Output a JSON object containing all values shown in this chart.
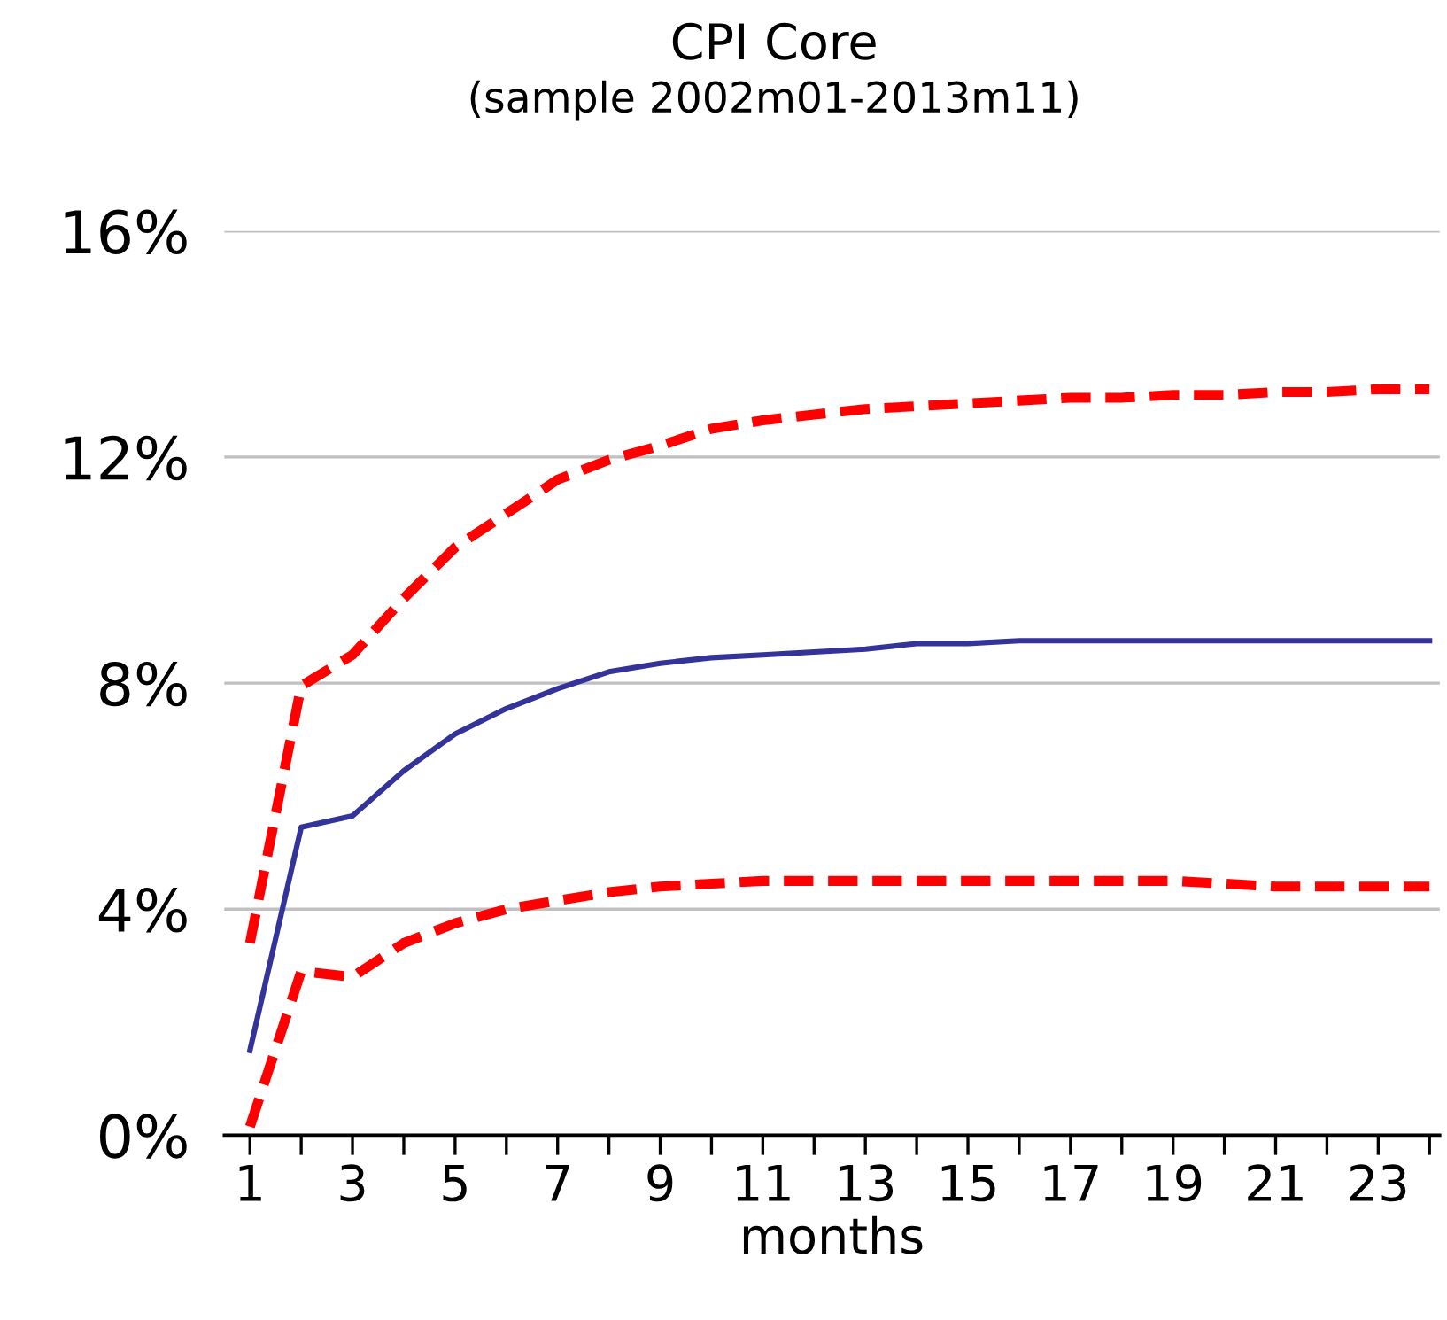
{
  "chart_data": {
    "type": "line",
    "title": "CPI Core",
    "subtitle": "(sample 2002m01-2013m11)",
    "xlabel": "months",
    "x": [
      1,
      2,
      3,
      4,
      5,
      6,
      7,
      8,
      9,
      10,
      11,
      12,
      13,
      14,
      15,
      16,
      17,
      18,
      19,
      20,
      21,
      22,
      23,
      24
    ],
    "series": [
      {
        "color": "#ff0000",
        "line_style": "dashed",
        "values": [
          3.4,
          7.95,
          8.5,
          9.5,
          10.4,
          11.0,
          11.6,
          11.95,
          12.2,
          12.5,
          12.65,
          12.75,
          12.85,
          12.9,
          12.95,
          13.0,
          13.05,
          13.05,
          13.1,
          13.1,
          13.15,
          13.15,
          13.2,
          13.2
        ]
      },
      {
        "color": "#333399",
        "line_style": "solid",
        "values": [
          1.5,
          5.45,
          5.65,
          6.45,
          7.1,
          7.55,
          7.9,
          8.2,
          8.35,
          8.45,
          8.5,
          8.55,
          8.6,
          8.7,
          8.7,
          8.75,
          8.75,
          8.75,
          8.75,
          8.75,
          8.75,
          8.75,
          8.75,
          8.75
        ]
      },
      {
        "color": "#ff0000",
        "line_style": "dashed",
        "values": [
          0.15,
          2.9,
          2.8,
          3.4,
          3.75,
          4.0,
          4.15,
          4.3,
          4.4,
          4.45,
          4.5,
          4.5,
          4.5,
          4.5,
          4.5,
          4.5,
          4.5,
          4.5,
          4.5,
          4.45,
          4.4,
          4.4,
          4.4,
          4.4
        ]
      }
    ],
    "xlim": [
      0.5,
      24.2
    ],
    "ylim": [
      0,
      16
    ],
    "xticks": [
      1,
      {
        "value": 2,
        "label": null
      },
      3,
      {
        "value": 4,
        "label": null
      },
      5,
      {
        "value": 6,
        "label": null
      },
      7,
      {
        "value": 8,
        "label": null
      },
      9,
      {
        "value": 10,
        "label": null
      },
      11,
      {
        "value": 12,
        "label": null
      },
      13,
      {
        "value": 14,
        "label": null
      },
      15,
      {
        "value": 16,
        "label": null
      },
      17,
      {
        "value": 18,
        "label": null
      },
      19,
      {
        "value": 20,
        "label": null
      },
      21,
      {
        "value": 22,
        "label": null
      },
      23,
      {
        "value": 24,
        "label": null
      }
    ],
    "yticks": [
      {
        "value": 0,
        "label": "0%"
      },
      {
        "value": 4,
        "label": "4%"
      },
      {
        "value": 8,
        "label": "8%"
      },
      {
        "value": 12,
        "label": "12%"
      },
      {
        "value": 16,
        "label": "16%"
      }
    ],
    "grid": "y",
    "legend": false
  }
}
